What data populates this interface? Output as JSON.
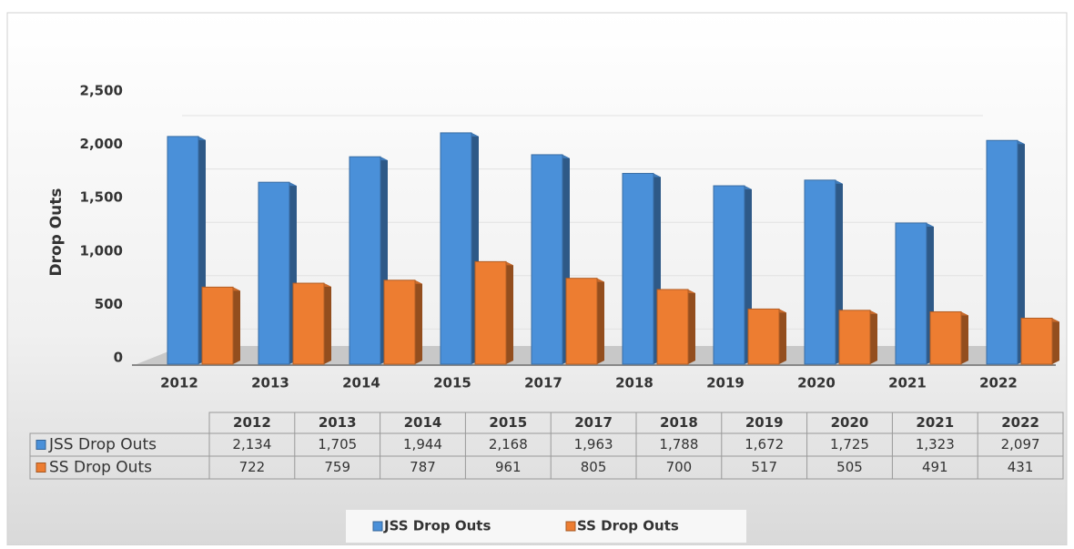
{
  "chart_data": {
    "type": "bar3d",
    "y_label": "Drop Outs",
    "categories": [
      "2012",
      "2013",
      "2014",
      "2015",
      "2017",
      "2018",
      "2019",
      "2020",
      "2021",
      "2022"
    ],
    "series": [
      {
        "name": "JSS Drop Outs",
        "color": "#4a90d9",
        "values": [
          2134,
          1705,
          1944,
          2168,
          1963,
          1788,
          1672,
          1725,
          1323,
          2097
        ],
        "value_labels": [
          "2,134",
          "1,705",
          "1,944",
          "2,168",
          "1,963",
          "1,788",
          "1,672",
          "1,725",
          "1,323",
          "2,097"
        ]
      },
      {
        "name": "SS Drop Outs",
        "color": "#ed7d31",
        "values": [
          722,
          759,
          787,
          961,
          805,
          700,
          517,
          505,
          491,
          431
        ]
      }
    ],
    "ylim": [
      0,
      2500
    ],
    "yticks": [
      0,
      500,
      {
        "value": 1000,
        "label": "1,000"
      },
      {
        "value": 1500,
        "label": "1,500"
      },
      {
        "value": 2000,
        "label": "2,000"
      },
      {
        "value": 2500,
        "label": "2,500"
      }
    ],
    "grid": true,
    "legend": "bottom"
  }
}
